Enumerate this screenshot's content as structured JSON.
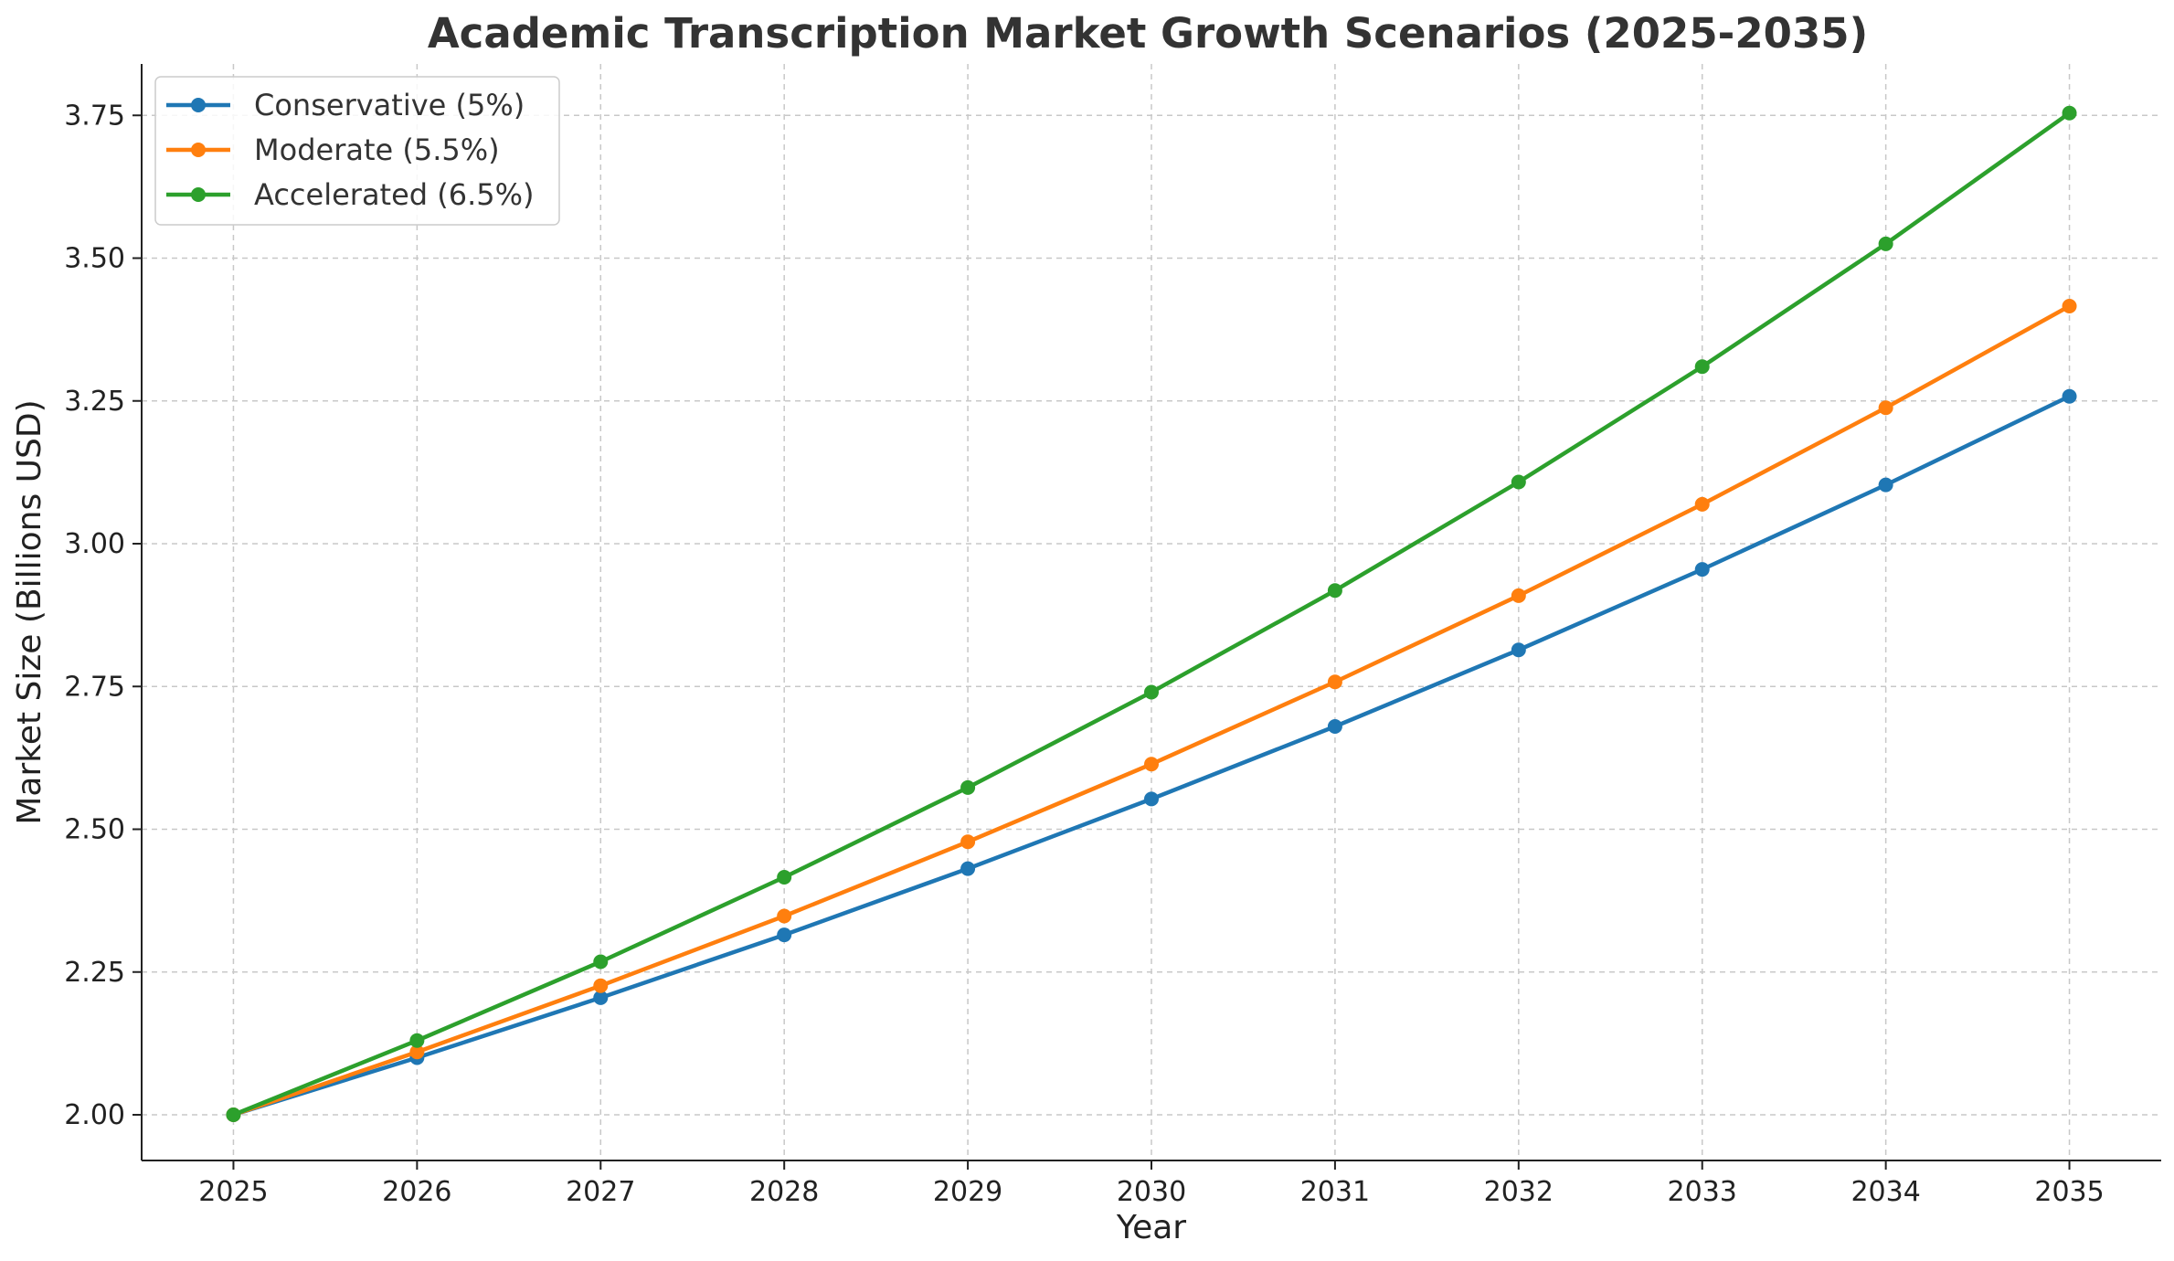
{
  "chart_data": {
    "type": "line",
    "title": "Academic Transcription Market Growth Scenarios (2025-2035)",
    "xlabel": "Year",
    "ylabel": "Market Size (Billions USD)",
    "x": [
      2025,
      2026,
      2027,
      2028,
      2029,
      2030,
      2031,
      2032,
      2033,
      2034,
      2035
    ],
    "x_tick_labels": [
      "2025",
      "2026",
      "2027",
      "2028",
      "2029",
      "2030",
      "2031",
      "2032",
      "2033",
      "2034",
      "2035"
    ],
    "xlim": [
      2024.5,
      2035.5
    ],
    "ylim": [
      1.92,
      3.84
    ],
    "y_ticks": [
      2.0,
      2.25,
      2.5,
      2.75,
      3.0,
      3.25,
      3.5,
      3.75
    ],
    "y_tick_labels": [
      "2.00",
      "2.25",
      "2.50",
      "2.75",
      "3.00",
      "3.25",
      "3.50",
      "3.75"
    ],
    "grid": true,
    "legend_position": "top-left",
    "series": [
      {
        "name": "Conservative (5%)",
        "color": "#1f77b4",
        "values": [
          2.0,
          2.1,
          2.205,
          2.315,
          2.431,
          2.553,
          2.68,
          2.814,
          2.955,
          3.103,
          3.258
        ]
      },
      {
        "name": "Moderate (5.5%)",
        "color": "#ff7f0e",
        "values": [
          2.0,
          2.11,
          2.226,
          2.348,
          2.478,
          2.614,
          2.758,
          2.909,
          3.069,
          3.238,
          3.416
        ]
      },
      {
        "name": "Accelerated (6.5%)",
        "color": "#2ca02c",
        "values": [
          2.0,
          2.13,
          2.268,
          2.416,
          2.573,
          2.74,
          2.918,
          3.108,
          3.31,
          3.525,
          3.754
        ]
      }
    ]
  }
}
